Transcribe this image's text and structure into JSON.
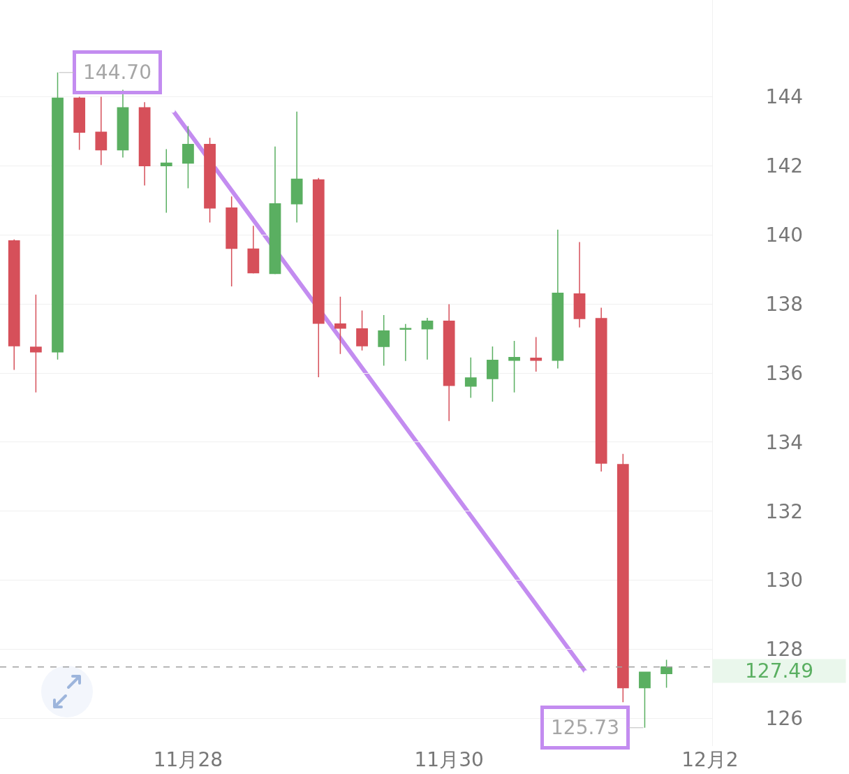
{
  "chart_data": {
    "type": "candlestick",
    "categories": [
      null,
      null,
      null,
      null,
      null,
      null,
      null,
      null,
      "11月28",
      null,
      null,
      null,
      null,
      null,
      null,
      null,
      null,
      null,
      null,
      null,
      "11月30",
      null,
      null,
      null,
      null,
      null,
      null,
      null,
      null,
      null,
      null,
      null,
      "12月2"
    ],
    "ohlc": [
      [
        139.83,
        139.87,
        136.09,
        136.79
      ],
      [
        136.75,
        138.27,
        135.44,
        136.61
      ],
      [
        136.61,
        144.7,
        136.39,
        143.96
      ],
      [
        143.96,
        144.0,
        142.46,
        142.97
      ],
      [
        142.97,
        144.0,
        142.02,
        142.46
      ],
      [
        142.46,
        144.2,
        142.24,
        143.68
      ],
      [
        143.68,
        143.84,
        141.43,
        142.0
      ],
      [
        142.0,
        142.48,
        140.64,
        142.08
      ],
      [
        142.08,
        143.15,
        141.35,
        142.62
      ],
      [
        142.62,
        142.81,
        140.36,
        140.78
      ],
      [
        140.78,
        141.11,
        138.51,
        139.61
      ],
      [
        139.59,
        140.26,
        138.88,
        138.9
      ],
      [
        138.88,
        142.56,
        138.86,
        140.9
      ],
      [
        140.9,
        143.57,
        140.36,
        141.61
      ],
      [
        141.59,
        141.65,
        135.88,
        137.44
      ],
      [
        137.42,
        138.21,
        136.55,
        137.3
      ],
      [
        137.28,
        137.81,
        136.65,
        136.79
      ],
      [
        136.77,
        137.68,
        136.21,
        137.22
      ],
      [
        137.27,
        137.42,
        136.35,
        137.29
      ],
      [
        137.28,
        137.6,
        136.39,
        137.5
      ],
      [
        137.5,
        137.99,
        134.61,
        135.64
      ],
      [
        135.62,
        136.45,
        135.28,
        135.86
      ],
      [
        135.84,
        136.77,
        135.17,
        136.37
      ],
      [
        136.37,
        136.93,
        135.44,
        136.45
      ],
      [
        136.43,
        137.04,
        136.04,
        136.37
      ],
      [
        136.37,
        140.15,
        136.13,
        138.31
      ],
      [
        138.29,
        139.79,
        137.32,
        137.58
      ],
      [
        137.58,
        137.89,
        133.15,
        133.39
      ],
      [
        133.35,
        133.66,
        126.47,
        126.89
      ],
      [
        126.89,
        127.34,
        125.73,
        127.34
      ],
      [
        127.3,
        127.7,
        126.89,
        127.49
      ],
      null,
      null
    ],
    "colors": [
      "#d6505a",
      "#d6505a",
      "#5aaf61",
      "#d6505a",
      "#d6505a",
      "#5aaf61",
      "#d6505a",
      "#5aaf61",
      "#5aaf61",
      "#d6505a",
      "#d6505a",
      "#d6505a",
      "#5aaf61",
      "#5aaf61",
      "#d6505a",
      "#d6505a",
      "#d6505a",
      "#5aaf61",
      "#5aaf61",
      "#5aaf61",
      "#d6505a",
      "#5aaf61",
      "#5aaf61",
      "#5aaf61",
      "#d6505a",
      "#5aaf61",
      "#d6505a",
      "#d6505a",
      "#d6505a",
      "#5aaf61",
      "#5aaf61",
      null,
      null
    ],
    "ylim": [
      125.2,
      146.8
    ],
    "yticks": [
      126,
      128,
      130,
      132,
      134,
      136,
      138,
      140,
      142,
      144
    ],
    "grid": "y",
    "ref_lines": [
      {
        "axis": "y",
        "value": 127.49,
        "label": "127.49",
        "color": "#a0a0a0",
        "line_style": "dashed"
      }
    ],
    "annotations": [
      "144.70",
      "125.73"
    ]
  }
}
